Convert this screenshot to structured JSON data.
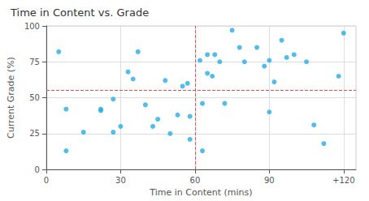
{
  "chart_data": {
    "type": "scatter",
    "title": "Time in Content vs. Grade",
    "xlabel": "Time in Content (mins)",
    "ylabel": "Current Grade (%)",
    "x": [
      5,
      8,
      8,
      15,
      22,
      22,
      27,
      27,
      30,
      33,
      35,
      37,
      40,
      43,
      45,
      48,
      50,
      53,
      55,
      57,
      58,
      58,
      62,
      63,
      63,
      65,
      65,
      67,
      68,
      70,
      72,
      75,
      78,
      80,
      85,
      88,
      90,
      90,
      92,
      95,
      97,
      100,
      105,
      108,
      112,
      118,
      120
    ],
    "values": [
      82,
      13,
      42,
      26,
      42,
      41,
      26,
      49,
      30,
      68,
      63,
      82,
      45,
      30,
      35,
      62,
      25,
      38,
      58,
      60,
      21,
      37,
      76,
      13,
      46,
      80,
      67,
      65,
      80,
      75,
      46,
      97,
      85,
      75,
      85,
      72,
      76,
      40,
      61,
      90,
      78,
      80,
      75,
      31,
      18,
      65,
      95
    ],
    "color": "#29ABE2",
    "xlim": [
      0,
      125
    ],
    "xticks": [
      0,
      30,
      60,
      90,
      {
        "value": 120,
        "label": "+120"
      }
    ],
    "ylim": [
      0,
      100
    ],
    "yticks": [
      0,
      25,
      50,
      75,
      100
    ],
    "reference_lines": [
      {
        "axis": "x",
        "value": 60,
        "color": "#E05050",
        "line_style": "dashed"
      },
      {
        "axis": "y",
        "value": 55,
        "color": "#E05050",
        "line_style": "dashed"
      }
    ],
    "grid": true
  }
}
